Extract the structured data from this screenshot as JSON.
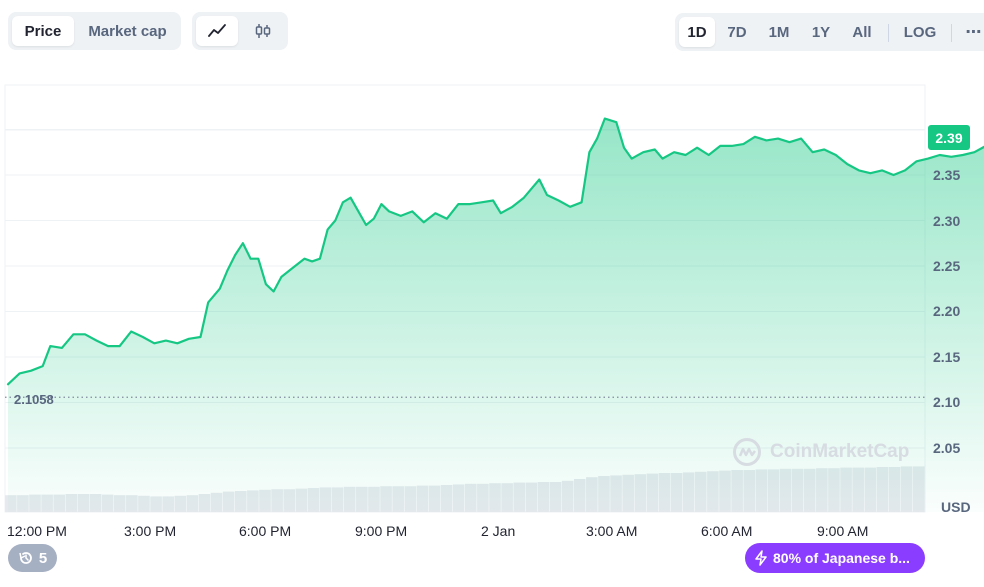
{
  "toolbar": {
    "view_tabs": [
      "Price",
      "Market cap"
    ],
    "active_view": "Price",
    "chart_type_icons": [
      "line-chart-icon",
      "candlestick-icon"
    ],
    "active_chart_type": "line-chart-icon",
    "timeframes": [
      "1D",
      "7D",
      "1M",
      "1Y",
      "All"
    ],
    "active_timeframe": "1D",
    "log_label": "LOG",
    "more_icon": "more-icon"
  },
  "chart_data": {
    "type": "area",
    "currency_label": "USD",
    "y_ticks": [
      "2.05",
      "2.10",
      "2.15",
      "2.20",
      "2.25",
      "2.30",
      "2.35"
    ],
    "ylim": [
      2.0,
      2.4
    ],
    "x_ticks": [
      "12:00 PM",
      "3:00 PM",
      "6:00 PM",
      "9:00 PM",
      "2 Jan",
      "3:00 AM",
      "6:00 AM",
      "9:00 AM"
    ],
    "open_value": "2.1058",
    "current_price": "2.39",
    "series": [
      {
        "values": [
          [
            12.0,
            2.12
          ],
          [
            12.3,
            2.132
          ],
          [
            12.6,
            2.135
          ],
          [
            12.9,
            2.14
          ],
          [
            13.1,
            2.162
          ],
          [
            13.4,
            2.16
          ],
          [
            13.7,
            2.175
          ],
          [
            14.0,
            2.175
          ],
          [
            14.3,
            2.168
          ],
          [
            14.6,
            2.162
          ],
          [
            14.9,
            2.162
          ],
          [
            15.2,
            2.178
          ],
          [
            15.5,
            2.172
          ],
          [
            15.8,
            2.165
          ],
          [
            16.1,
            2.168
          ],
          [
            16.4,
            2.165
          ],
          [
            16.7,
            2.17
          ],
          [
            17.0,
            2.172
          ],
          [
            17.2,
            2.21
          ],
          [
            17.5,
            2.225
          ],
          [
            17.7,
            2.245
          ],
          [
            17.9,
            2.262
          ],
          [
            18.1,
            2.275
          ],
          [
            18.3,
            2.258
          ],
          [
            18.5,
            2.258
          ],
          [
            18.7,
            2.23
          ],
          [
            18.9,
            2.222
          ],
          [
            19.1,
            2.238
          ],
          [
            19.4,
            2.248
          ],
          [
            19.7,
            2.258
          ],
          [
            19.9,
            2.255
          ],
          [
            20.1,
            2.258
          ],
          [
            20.3,
            2.29
          ],
          [
            20.5,
            2.3
          ],
          [
            20.7,
            2.32
          ],
          [
            20.9,
            2.325
          ],
          [
            21.1,
            2.31
          ],
          [
            21.3,
            2.295
          ],
          [
            21.5,
            2.302
          ],
          [
            21.7,
            2.318
          ],
          [
            21.9,
            2.31
          ],
          [
            22.2,
            2.305
          ],
          [
            22.5,
            2.31
          ],
          [
            22.8,
            2.298
          ],
          [
            23.1,
            2.308
          ],
          [
            23.4,
            2.302
          ],
          [
            23.7,
            2.318
          ],
          [
            24.0,
            2.318
          ],
          [
            24.3,
            2.32
          ],
          [
            24.6,
            2.322
          ],
          [
            24.8,
            2.308
          ],
          [
            25.1,
            2.315
          ],
          [
            25.4,
            2.325
          ],
          [
            25.6,
            2.335
          ],
          [
            25.8,
            2.345
          ],
          [
            26.0,
            2.328
          ],
          [
            26.3,
            2.322
          ],
          [
            26.6,
            2.315
          ],
          [
            26.9,
            2.32
          ],
          [
            27.1,
            2.375
          ],
          [
            27.3,
            2.39
          ],
          [
            27.5,
            2.412
          ],
          [
            27.8,
            2.408
          ],
          [
            28.0,
            2.38
          ],
          [
            28.2,
            2.368
          ],
          [
            28.5,
            2.375
          ],
          [
            28.8,
            2.378
          ],
          [
            29.0,
            2.368
          ],
          [
            29.3,
            2.375
          ],
          [
            29.6,
            2.372
          ],
          [
            29.9,
            2.38
          ],
          [
            30.2,
            2.372
          ],
          [
            30.5,
            2.382
          ],
          [
            30.8,
            2.382
          ],
          [
            31.1,
            2.384
          ],
          [
            31.4,
            2.392
          ],
          [
            31.7,
            2.388
          ],
          [
            32.0,
            2.39
          ],
          [
            32.3,
            2.386
          ],
          [
            32.6,
            2.39
          ],
          [
            32.9,
            2.375
          ],
          [
            33.2,
            2.378
          ],
          [
            33.5,
            2.372
          ],
          [
            33.8,
            2.362
          ],
          [
            34.1,
            2.355
          ],
          [
            34.4,
            2.352
          ],
          [
            34.7,
            2.355
          ],
          [
            35.0,
            2.35
          ],
          [
            35.3,
            2.355
          ],
          [
            35.6,
            2.365
          ],
          [
            35.9,
            2.368
          ],
          [
            36.2,
            2.372
          ],
          [
            36.5,
            2.37
          ],
          [
            36.8,
            2.372
          ],
          [
            37.1,
            2.375
          ],
          [
            37.4,
            2.382
          ],
          [
            37.7,
            2.385
          ],
          [
            38.0,
            2.388
          ],
          [
            38.3,
            2.386
          ],
          [
            38.6,
            2.382
          ]
        ]
      }
    ],
    "volume": [
      0.28,
      0.28,
      0.29,
      0.29,
      0.29,
      0.3,
      0.3,
      0.3,
      0.29,
      0.28,
      0.28,
      0.27,
      0.26,
      0.26,
      0.27,
      0.28,
      0.3,
      0.32,
      0.34,
      0.35,
      0.36,
      0.37,
      0.38,
      0.38,
      0.39,
      0.4,
      0.41,
      0.41,
      0.42,
      0.42,
      0.42,
      0.43,
      0.43,
      0.43,
      0.44,
      0.44,
      0.45,
      0.46,
      0.47,
      0.47,
      0.48,
      0.48,
      0.49,
      0.49,
      0.5,
      0.5,
      0.52,
      0.55,
      0.58,
      0.6,
      0.61,
      0.62,
      0.63,
      0.64,
      0.65,
      0.65,
      0.66,
      0.67,
      0.68,
      0.69,
      0.7,
      0.7,
      0.71,
      0.71,
      0.72,
      0.72,
      0.72,
      0.73,
      0.73,
      0.74,
      0.74,
      0.74,
      0.75,
      0.75,
      0.76,
      0.76
    ],
    "grid": true,
    "line_color": "#16c784",
    "watermark": "CoinMarketCap"
  },
  "footer": {
    "history_count": "5",
    "news_text": "80% of Japanese b..."
  }
}
